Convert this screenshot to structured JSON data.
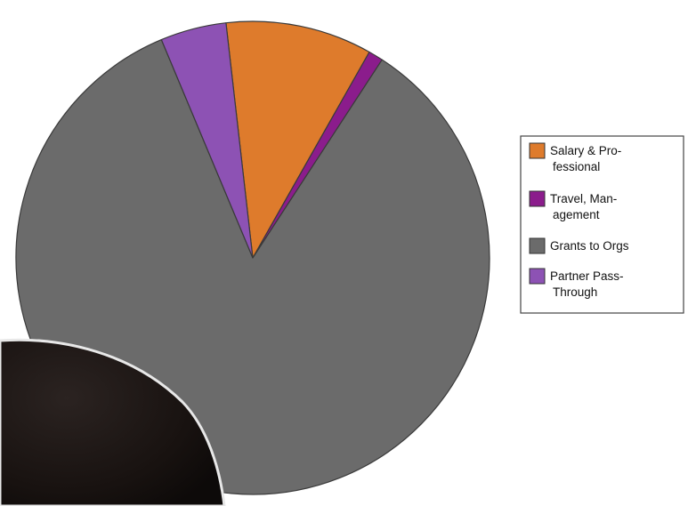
{
  "chart_data": {
    "type": "pie",
    "slices": [
      {
        "label": "Salary & Professional",
        "legend_lines": [
          "Salary & Pro-",
          "fessional"
        ],
        "value": 10,
        "color": "#de7b2c"
      },
      {
        "label": "Travel, Management",
        "legend_lines": [
          "Travel, Man-",
          "agement"
        ],
        "value": 1,
        "color": "#8b1c8c"
      },
      {
        "label": "Grants to Orgs",
        "legend_lines": [
          "Grants to Orgs"
        ],
        "value": 84.5,
        "color": "#6b6b6b"
      },
      {
        "label": "Partner Pass-Through",
        "legend_lines": [
          "Partner Pass-",
          "Through"
        ],
        "value": 4.5,
        "color": "#8d52b4"
      }
    ],
    "legend_position": "right"
  }
}
